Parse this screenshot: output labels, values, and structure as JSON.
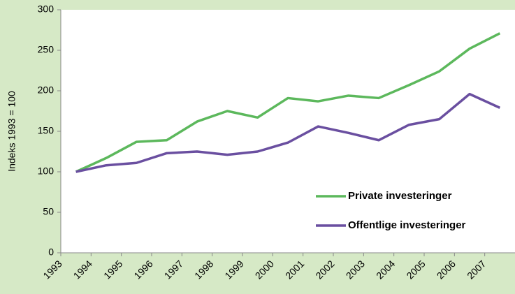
{
  "chart_data": {
    "type": "line",
    "y_label": "Indeks 1993 = 100",
    "categories": [
      "1993",
      "1994",
      "1995",
      "1996",
      "1997",
      "1998",
      "1999",
      "2000",
      "2001",
      "2002",
      "2003",
      "2004",
      "2005",
      "2006",
      "2007"
    ],
    "series": [
      {
        "name": "Private investeringer",
        "color": "#5cb85c",
        "values": [
          100,
          117,
          137,
          139,
          162,
          175,
          167,
          191,
          187,
          194,
          191,
          207,
          224,
          252,
          271
        ]
      },
      {
        "name": "Offentlige investeringer",
        "color": "#6a4fa0",
        "values": [
          100,
          108,
          111,
          123,
          125,
          121,
          125,
          136,
          156,
          148,
          139,
          158,
          165,
          196,
          179
        ]
      }
    ],
    "ylim": [
      0,
      300
    ],
    "yticks": [
      0,
      50,
      100,
      150,
      200,
      250,
      300
    ],
    "grid": false,
    "legend": "lower right"
  }
}
